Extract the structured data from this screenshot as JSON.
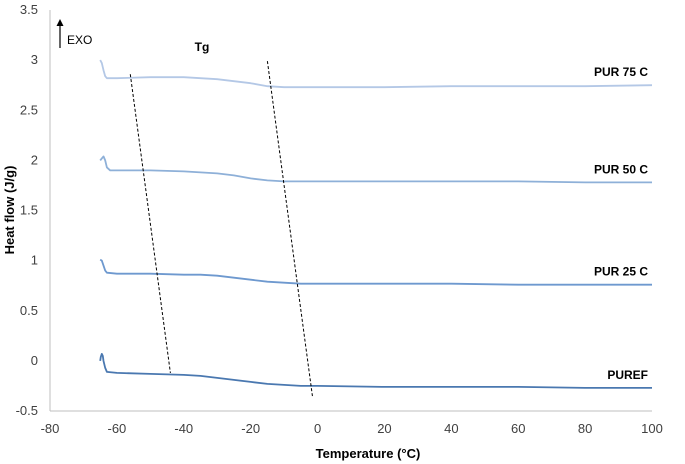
{
  "chart_data": {
    "type": "line",
    "title": "",
    "xlabel": "Temperature (°C)",
    "ylabel": "Heat flow (J/g)",
    "xlim": [
      -80,
      100
    ],
    "ylim": [
      -0.5,
      3.5
    ],
    "xticks": [
      -80,
      -60,
      -40,
      -20,
      0,
      20,
      40,
      60,
      80,
      100
    ],
    "yticks": [
      -0.5,
      0,
      0.5,
      1,
      1.5,
      2,
      2.5,
      3,
      3.5
    ],
    "xtick_labels": [
      "-80",
      "-60",
      "-40",
      "-20",
      "0",
      "20",
      "40",
      "60",
      "80",
      "100"
    ],
    "ytick_labels": [
      "-0.5",
      "0",
      "0.5",
      "1",
      "1.5",
      "2",
      "2.5",
      "3",
      "3.5"
    ],
    "grid": false,
    "exo_note": "EXO",
    "tg_label": "Tg",
    "series": [
      {
        "name": "PUR 75 C",
        "color": "#b4c8e6",
        "points": [
          [
            -65,
            3.0
          ],
          [
            -64.5,
            2.97
          ],
          [
            -64,
            2.9
          ],
          [
            -63.5,
            2.84
          ],
          [
            -63,
            2.82
          ],
          [
            -60,
            2.82
          ],
          [
            -50,
            2.83
          ],
          [
            -40,
            2.83
          ],
          [
            -35,
            2.82
          ],
          [
            -30,
            2.81
          ],
          [
            -25,
            2.79
          ],
          [
            -20,
            2.77
          ],
          [
            -15,
            2.74
          ],
          [
            -10,
            2.73
          ],
          [
            0,
            2.73
          ],
          [
            20,
            2.73
          ],
          [
            40,
            2.74
          ],
          [
            60,
            2.74
          ],
          [
            80,
            2.74
          ],
          [
            100,
            2.75
          ]
        ]
      },
      {
        "name": "PUR 50 C",
        "color": "#8eb0d8",
        "points": [
          [
            -65,
            2.0
          ],
          [
            -64.5,
            2.02
          ],
          [
            -64,
            2.04
          ],
          [
            -63.5,
            2.0
          ],
          [
            -63,
            1.93
          ],
          [
            -62,
            1.9
          ],
          [
            -50,
            1.9
          ],
          [
            -40,
            1.89
          ],
          [
            -35,
            1.88
          ],
          [
            -30,
            1.87
          ],
          [
            -25,
            1.85
          ],
          [
            -20,
            1.82
          ],
          [
            -15,
            1.8
          ],
          [
            -10,
            1.79
          ],
          [
            0,
            1.79
          ],
          [
            20,
            1.79
          ],
          [
            40,
            1.79
          ],
          [
            60,
            1.79
          ],
          [
            80,
            1.78
          ],
          [
            100,
            1.78
          ]
        ]
      },
      {
        "name": "PUR 25 C",
        "color": "#6e99cf",
        "points": [
          [
            -65,
            1.01
          ],
          [
            -64.5,
            1.0
          ],
          [
            -64,
            0.95
          ],
          [
            -63.5,
            0.9
          ],
          [
            -63,
            0.88
          ],
          [
            -60,
            0.87
          ],
          [
            -50,
            0.87
          ],
          [
            -40,
            0.86
          ],
          [
            -35,
            0.86
          ],
          [
            -30,
            0.85
          ],
          [
            -25,
            0.83
          ],
          [
            -20,
            0.81
          ],
          [
            -15,
            0.79
          ],
          [
            -10,
            0.78
          ],
          [
            -5,
            0.77
          ],
          [
            0,
            0.77
          ],
          [
            20,
            0.77
          ],
          [
            40,
            0.77
          ],
          [
            60,
            0.76
          ],
          [
            80,
            0.76
          ],
          [
            100,
            0.76
          ]
        ]
      },
      {
        "name": "PUREF",
        "color": "#4a78b0",
        "points": [
          [
            -65,
            0.0
          ],
          [
            -64.8,
            0.04
          ],
          [
            -64.5,
            0.07
          ],
          [
            -64.2,
            0.05
          ],
          [
            -64,
            0.0
          ],
          [
            -63.5,
            -0.07
          ],
          [
            -63,
            -0.11
          ],
          [
            -60,
            -0.12
          ],
          [
            -50,
            -0.13
          ],
          [
            -40,
            -0.14
          ],
          [
            -35,
            -0.15
          ],
          [
            -30,
            -0.17
          ],
          [
            -25,
            -0.19
          ],
          [
            -20,
            -0.21
          ],
          [
            -15,
            -0.23
          ],
          [
            -10,
            -0.24
          ],
          [
            -5,
            -0.25
          ],
          [
            0,
            -0.25
          ],
          [
            20,
            -0.26
          ],
          [
            40,
            -0.26
          ],
          [
            60,
            -0.26
          ],
          [
            80,
            -0.27
          ],
          [
            100,
            -0.27
          ]
        ]
      }
    ],
    "tg_guides": [
      {
        "from": [
          -56,
          2.86
        ],
        "to": [
          -44,
          -0.12
        ]
      },
      {
        "from": [
          -15,
          2.99
        ],
        "to": [
          -1.5,
          -0.36
        ]
      }
    ]
  }
}
